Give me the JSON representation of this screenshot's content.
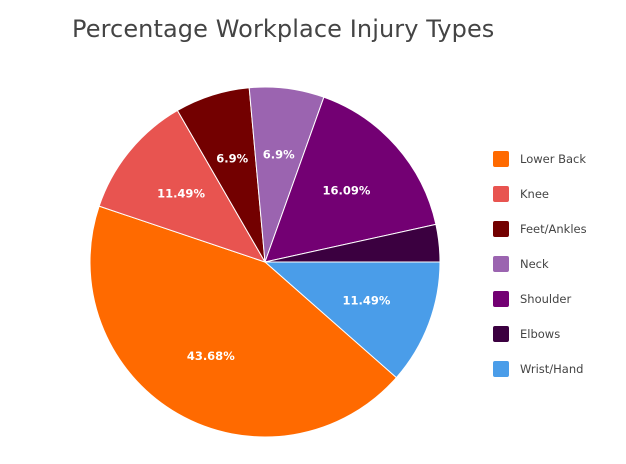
{
  "chart_data": {
    "type": "pie",
    "title": "Percentage Workplace Injury Types",
    "legend_position": "right",
    "start_angle_deg": 0,
    "direction": "clockwise",
    "slices": [
      {
        "name": "Wrist/Hand",
        "value": 11.49,
        "label": "11.49%",
        "color": "#4a9de9"
      },
      {
        "name": "Lower Back",
        "value": 43.68,
        "label": "43.68%",
        "color": "#ff6a00"
      },
      {
        "name": "Knee",
        "value": 11.49,
        "label": "11.49%",
        "color": "#e85450"
      },
      {
        "name": "Feet/Ankles",
        "value": 6.9,
        "label": "6.9%",
        "color": "#730000"
      },
      {
        "name": "Neck",
        "value": 6.9,
        "label": "6.9%",
        "color": "#9b64b0"
      },
      {
        "name": "Shoulder",
        "value": 16.09,
        "label": "16.09%",
        "color": "#730073"
      },
      {
        "name": "Elbows",
        "value": 3.45,
        "label": "",
        "color": "#3b0040"
      }
    ],
    "legend_order": [
      "Lower Back",
      "Knee",
      "Feet/Ankles",
      "Neck",
      "Shoulder",
      "Elbows",
      "Wrist/Hand"
    ]
  }
}
